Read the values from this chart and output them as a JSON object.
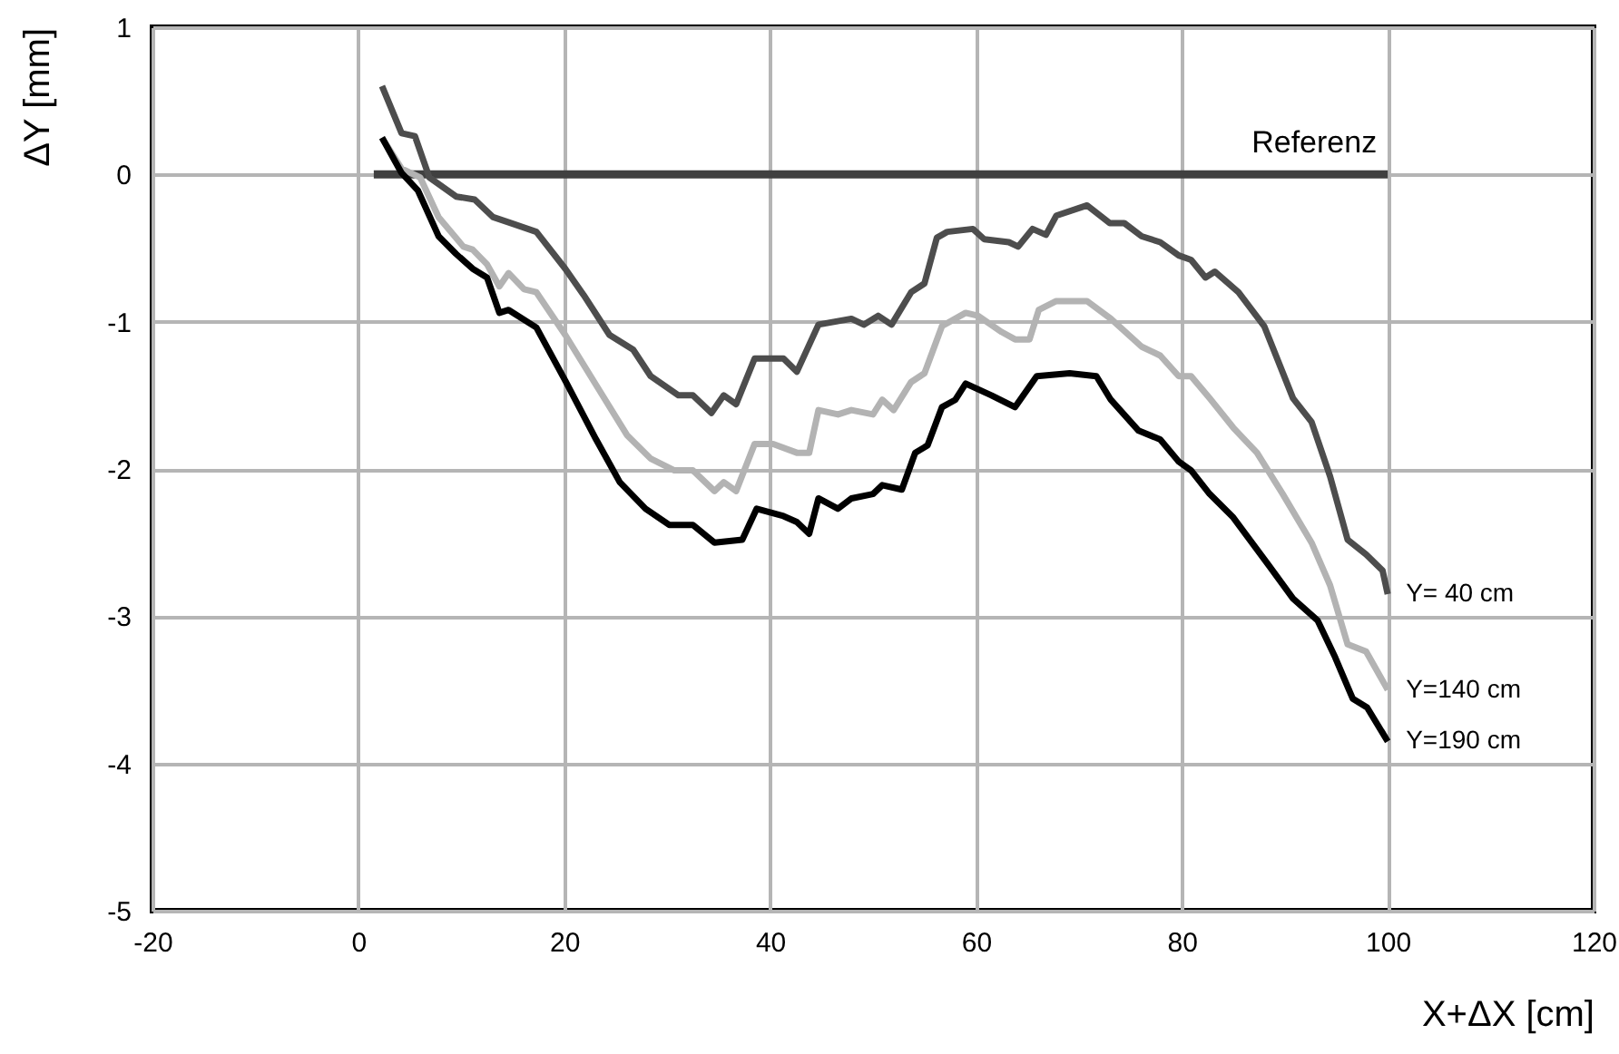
{
  "chart_data": {
    "type": "line",
    "xlabel": "X+ΔX [cm]",
    "ylabel": "ΔY [mm]",
    "xlim": [
      -20,
      120
    ],
    "xticks": [
      -20,
      0,
      20,
      40,
      60,
      80,
      100,
      120
    ],
    "ylim": [
      -5,
      1
    ],
    "yticks": [
      -5,
      -4,
      -3,
      -2,
      -1,
      0,
      1
    ],
    "grid": true,
    "series": [
      {
        "name": "Referenz",
        "color": "#404040",
        "x": [
          1.5,
          100
        ],
        "values": [
          0,
          0
        ]
      },
      {
        "name": "Y= 40 cm",
        "color": "#4d4d4d",
        "x": [
          2.3,
          4.2,
          5.5,
          6.9,
          9.5,
          11.3,
          13.1,
          14.8,
          17.3,
          20.1,
          21.9,
          24.4,
          26.7,
          28.4,
          31.1,
          32.5,
          34.3,
          35.5,
          36.7,
          38.5,
          41.3,
          42.6,
          44.7,
          47.9,
          49.1,
          50.5,
          51.8,
          53.7,
          55,
          56.2,
          57.2,
          59.7,
          60.8,
          63.2,
          64.1,
          65.5,
          66.8,
          67.8,
          70.8,
          73,
          74.4,
          76.1,
          77.9,
          79.7,
          80.9,
          82.3,
          83.2,
          85.5,
          88,
          90.8,
          92.6,
          94.4,
          96.1,
          97.9,
          99.5,
          100
        ],
        "values": [
          0.6,
          0.28,
          0.26,
          -0.02,
          -0.15,
          -0.17,
          -0.29,
          -0.33,
          -0.39,
          -0.64,
          -0.82,
          -1.09,
          -1.19,
          -1.37,
          -1.5,
          -1.5,
          -1.62,
          -1.5,
          -1.56,
          -1.25,
          -1.25,
          -1.34,
          -1.02,
          -0.98,
          -1.02,
          -0.96,
          -1.02,
          -0.8,
          -0.74,
          -0.43,
          -0.39,
          -0.37,
          -0.44,
          -0.46,
          -0.49,
          -0.37,
          -0.41,
          -0.28,
          -0.21,
          -0.33,
          -0.33,
          -0.42,
          -0.46,
          -0.55,
          -0.58,
          -0.7,
          -0.66,
          -0.8,
          -1.03,
          -1.52,
          -1.68,
          -2.05,
          -2.48,
          -2.58,
          -2.69,
          -2.85
        ]
      },
      {
        "name": "Y=140 cm",
        "color": "#b3b3b3",
        "x": [
          2.3,
          4.2,
          6,
          7.8,
          10.2,
          11.1,
          12.5,
          13.7,
          14.6,
          16.1,
          17.3,
          20.1,
          23.1,
          26.1,
          28.4,
          30.7,
          32.5,
          34.6,
          35.5,
          36.7,
          38.5,
          40.3,
          42.6,
          43.8,
          44.7,
          46.6,
          47.9,
          50,
          50.9,
          52,
          53.7,
          55,
          56.7,
          59,
          60.2,
          62.5,
          63.8,
          65.2,
          66.1,
          67.8,
          70.8,
          73.1,
          76.1,
          77.9,
          79.7,
          80.9,
          82.7,
          85,
          87.3,
          89.8,
          92.6,
          94.4,
          96.1,
          97.9,
          100
        ],
        "values": [
          0.25,
          0.04,
          -0.02,
          -0.29,
          -0.49,
          -0.51,
          -0.61,
          -0.76,
          -0.67,
          -0.78,
          -0.8,
          -1.09,
          -1.43,
          -1.77,
          -1.93,
          -2.01,
          -2.01,
          -2.15,
          -2.09,
          -2.15,
          -1.83,
          -1.83,
          -1.89,
          -1.89,
          -1.6,
          -1.63,
          -1.6,
          -1.63,
          -1.53,
          -1.6,
          -1.41,
          -1.35,
          -1.03,
          -0.94,
          -0.96,
          -1.07,
          -1.12,
          -1.12,
          -0.92,
          -0.86,
          -0.86,
          -0.98,
          -1.17,
          -1.23,
          -1.37,
          -1.37,
          -1.52,
          -1.72,
          -1.89,
          -2.17,
          -2.5,
          -2.79,
          -3.19,
          -3.24,
          -3.5
        ]
      },
      {
        "name": "Y=190 cm",
        "color": "#000000",
        "x": [
          2.3,
          4.2,
          5.8,
          7.8,
          9.5,
          11.1,
          12.5,
          13.7,
          14.6,
          17.3,
          20.1,
          23.1,
          25.4,
          27.9,
          30.2,
          32.5,
          34.6,
          37.3,
          38.7,
          41.3,
          42.6,
          43.8,
          44.7,
          46.6,
          47.9,
          50,
          50.9,
          52.8,
          54.1,
          55.3,
          56.7,
          58,
          59,
          61.5,
          63.8,
          65.9,
          69.1,
          71.7,
          73.1,
          75.8,
          77.9,
          79.7,
          80.9,
          82.7,
          85,
          88.5,
          90.8,
          93.2,
          94.9,
          96.6,
          98,
          100
        ],
        "values": [
          0.25,
          0.01,
          -0.11,
          -0.42,
          -0.54,
          -0.64,
          -0.7,
          -0.94,
          -0.92,
          -1.04,
          -1.4,
          -1.8,
          -2.09,
          -2.27,
          -2.38,
          -2.38,
          -2.5,
          -2.48,
          -2.27,
          -2.32,
          -2.36,
          -2.44,
          -2.2,
          -2.27,
          -2.2,
          -2.17,
          -2.11,
          -2.14,
          -1.89,
          -1.84,
          -1.58,
          -1.53,
          -1.42,
          -1.5,
          -1.58,
          -1.37,
          -1.35,
          -1.37,
          -1.53,
          -1.74,
          -1.8,
          -1.95,
          -2.01,
          -2.17,
          -2.33,
          -2.66,
          -2.88,
          -3.03,
          -3.28,
          -3.56,
          -3.62,
          -3.85
        ]
      }
    ]
  }
}
